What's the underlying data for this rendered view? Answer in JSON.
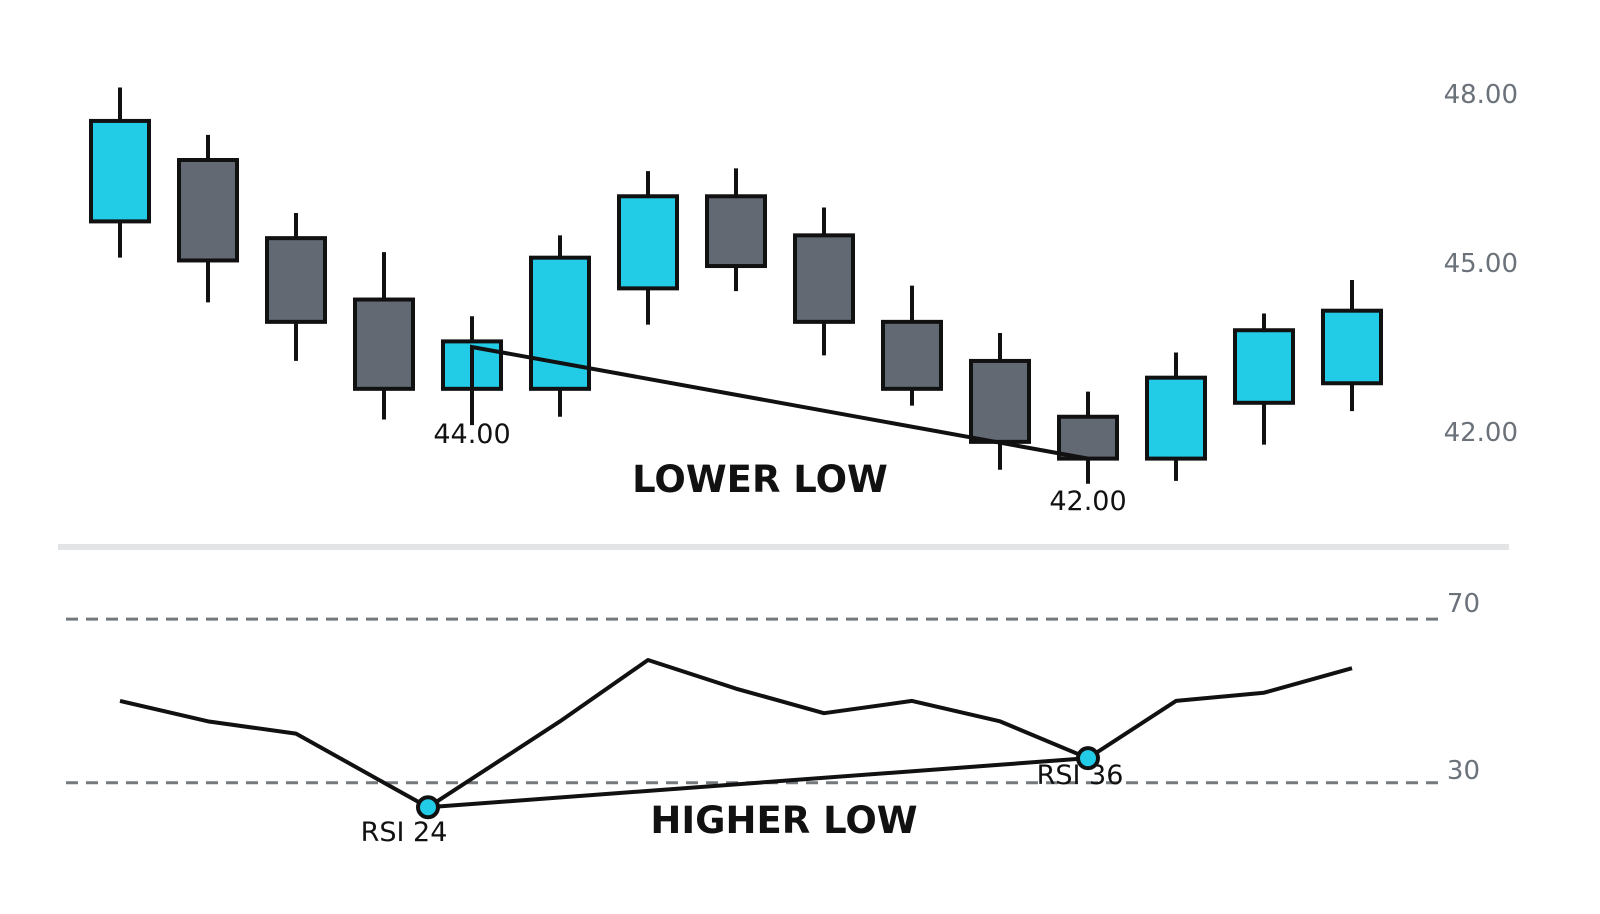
{
  "colors": {
    "bull": "#22cbe6",
    "bear": "#626973",
    "outline": "#111111",
    "line": "#111111",
    "guide": "#74797e",
    "divider": "#e2e4e6",
    "axis_text": "#6b727a"
  },
  "chart_data": [
    {
      "type": "candlestick",
      "ylim": [
        40.9,
        49.5
      ],
      "y_ticks": [
        "48.00",
        "45.00",
        "42.00"
      ],
      "y_tick_values": [
        48.0,
        45.0,
        42.0
      ],
      "candles": [
        {
          "open": 46.25,
          "high": 48.65,
          "low": 45.6,
          "close": 48.05,
          "direction": "up"
        },
        {
          "open": 47.35,
          "high": 47.8,
          "low": 44.8,
          "close": 45.55,
          "direction": "down"
        },
        {
          "open": 45.95,
          "high": 46.4,
          "low": 43.75,
          "close": 44.45,
          "direction": "down"
        },
        {
          "open": 44.85,
          "high": 45.7,
          "low": 42.7,
          "close": 43.25,
          "direction": "down"
        },
        {
          "open": 43.25,
          "high": 44.55,
          "low": 42.6,
          "close": 44.1,
          "direction": "up"
        },
        {
          "open": 43.25,
          "high": 46.0,
          "low": 42.75,
          "close": 45.6,
          "direction": "up"
        },
        {
          "open": 45.05,
          "high": 47.15,
          "low": 44.4,
          "close": 46.7,
          "direction": "up"
        },
        {
          "open": 46.7,
          "high": 47.2,
          "low": 45.0,
          "close": 45.45,
          "direction": "down"
        },
        {
          "open": 46.0,
          "high": 46.5,
          "low": 43.85,
          "close": 44.45,
          "direction": "down"
        },
        {
          "open": 44.45,
          "high": 45.1,
          "low": 42.95,
          "close": 43.25,
          "direction": "down"
        },
        {
          "open": 43.75,
          "high": 44.25,
          "low": 41.8,
          "close": 42.3,
          "direction": "down"
        },
        {
          "open": 42.75,
          "high": 43.2,
          "low": 41.55,
          "close": 42.0,
          "direction": "down"
        },
        {
          "open": 42.0,
          "high": 43.9,
          "low": 41.6,
          "close": 43.45,
          "direction": "up"
        },
        {
          "open": 43.0,
          "high": 44.6,
          "low": 42.25,
          "close": 44.3,
          "direction": "up"
        },
        {
          "open": 43.35,
          "high": 45.2,
          "low": 42.85,
          "close": 44.65,
          "direction": "up"
        }
      ],
      "divergence_line": {
        "from": {
          "index": 4,
          "value": 44.0
        },
        "to": {
          "index": 11,
          "value": 42.0
        }
      },
      "annotations": {
        "first_low": "44.00",
        "second_low": "42.00",
        "caption": "LOWER LOW"
      }
    },
    {
      "type": "line",
      "ylim": [
        16,
        82
      ],
      "y_ticks": [
        "70",
        "30"
      ],
      "y_tick_values": [
        70,
        30
      ],
      "levels": [
        70,
        30
      ],
      "values": [
        50,
        45,
        42,
        24,
        45,
        60,
        53,
        47,
        50,
        45,
        36,
        50,
        52,
        58
      ],
      "x_positions": [
        0,
        1,
        2,
        3.5,
        5,
        6,
        7,
        8,
        9,
        10,
        11,
        12,
        13,
        14
      ],
      "divergence_line": {
        "from": {
          "index": 3,
          "value": 24
        },
        "to": {
          "index": 10,
          "value": 36
        }
      },
      "points": {
        "first_label": "RSI 24",
        "second_label": "RSI 36",
        "caption": "HIGHER LOW"
      }
    }
  ]
}
